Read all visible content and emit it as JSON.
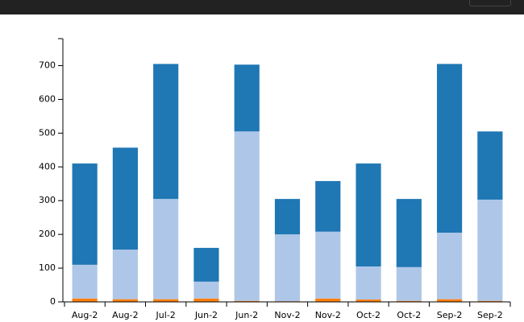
{
  "chart_data": {
    "type": "stacked_bar",
    "categories": [
      "Aug-2",
      "Aug-2",
      "Jul-2",
      "Jun-2",
      "Jun-2",
      "Nov-2",
      "Nov-2",
      "Oct-2",
      "Oct-2",
      "Sep-2",
      "Sep-2"
    ],
    "series": [
      {
        "color": "#ff7f0e",
        "values": [
          10,
          8,
          8,
          10,
          3,
          2,
          10,
          7,
          3,
          8,
          3
        ]
      },
      {
        "color": "#aec7e8",
        "values": [
          100,
          147,
          297,
          50,
          502,
          198,
          198,
          98,
          100,
          197,
          300
        ]
      },
      {
        "color": "#1f77b4",
        "values": [
          300,
          302,
          400,
          100,
          198,
          105,
          150,
          305,
          202,
          500,
          202
        ]
      }
    ],
    "ylim": [
      0,
      780
    ],
    "yticks": [
      0,
      100,
      200,
      300,
      400,
      500,
      600,
      700
    ]
  }
}
